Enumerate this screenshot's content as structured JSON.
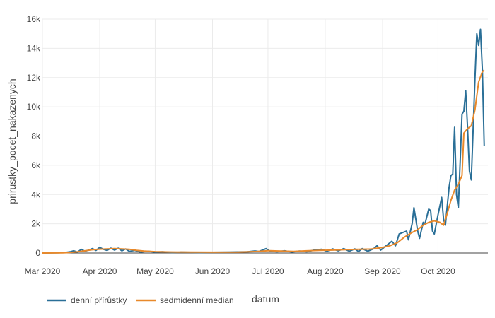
{
  "chart_data": {
    "type": "line",
    "xlabel": "datum",
    "ylabel": "prirustky_pocet_nakazenych",
    "x_range": [
      "2020-03-01",
      "2020-10-28"
    ],
    "ylim": [
      0,
      16000
    ],
    "y_ticks": [
      0,
      2000,
      4000,
      6000,
      8000,
      10000,
      12000,
      14000,
      16000
    ],
    "y_tick_labels": [
      "0",
      "2k",
      "4k",
      "6k",
      "8k",
      "10k",
      "12k",
      "14k",
      "16k"
    ],
    "x_ticks": [
      "2020-03-01",
      "2020-04-01",
      "2020-05-01",
      "2020-06-01",
      "2020-07-01",
      "2020-08-01",
      "2020-09-01",
      "2020-10-01"
    ],
    "x_tick_labels": [
      "Mar 2020",
      "Apr 2020",
      "May 2020",
      "Jun 2020",
      "Jul 2020",
      "Aug 2020",
      "Sep 2020",
      "Oct 2020"
    ],
    "grid": true,
    "legend_position": "bottom-left",
    "series": [
      {
        "name": "denní přírůstky",
        "color": "#2a6f97",
        "points": [
          [
            "2020-03-01",
            0
          ],
          [
            "2020-03-10",
            20
          ],
          [
            "2020-03-14",
            50
          ],
          [
            "2020-03-16",
            80
          ],
          [
            "2020-03-18",
            150
          ],
          [
            "2020-03-20",
            60
          ],
          [
            "2020-03-22",
            250
          ],
          [
            "2020-03-24",
            120
          ],
          [
            "2020-03-26",
            200
          ],
          [
            "2020-03-28",
            300
          ],
          [
            "2020-03-30",
            180
          ],
          [
            "2020-04-01",
            380
          ],
          [
            "2020-04-03",
            250
          ],
          [
            "2020-04-05",
            180
          ],
          [
            "2020-04-07",
            330
          ],
          [
            "2020-04-09",
            200
          ],
          [
            "2020-04-11",
            330
          ],
          [
            "2020-04-13",
            150
          ],
          [
            "2020-04-15",
            280
          ],
          [
            "2020-04-17",
            110
          ],
          [
            "2020-04-20",
            180
          ],
          [
            "2020-04-23",
            60
          ],
          [
            "2020-04-27",
            120
          ],
          [
            "2020-05-01",
            60
          ],
          [
            "2020-05-05",
            80
          ],
          [
            "2020-05-10",
            40
          ],
          [
            "2020-05-15",
            60
          ],
          [
            "2020-05-20",
            50
          ],
          [
            "2020-05-25",
            40
          ],
          [
            "2020-06-01",
            50
          ],
          [
            "2020-06-10",
            60
          ],
          [
            "2020-06-20",
            80
          ],
          [
            "2020-06-24",
            140
          ],
          [
            "2020-06-26",
            100
          ],
          [
            "2020-06-28",
            200
          ],
          [
            "2020-06-30",
            300
          ],
          [
            "2020-07-02",
            120
          ],
          [
            "2020-07-06",
            80
          ],
          [
            "2020-07-10",
            150
          ],
          [
            "2020-07-14",
            70
          ],
          [
            "2020-07-18",
            130
          ],
          [
            "2020-07-22",
            80
          ],
          [
            "2020-07-26",
            200
          ],
          [
            "2020-07-30",
            250
          ],
          [
            "2020-08-02",
            120
          ],
          [
            "2020-08-05",
            280
          ],
          [
            "2020-08-08",
            150
          ],
          [
            "2020-08-11",
            300
          ],
          [
            "2020-08-14",
            120
          ],
          [
            "2020-08-17",
            280
          ],
          [
            "2020-08-19",
            100
          ],
          [
            "2020-08-21",
            300
          ],
          [
            "2020-08-24",
            120
          ],
          [
            "2020-08-27",
            280
          ],
          [
            "2020-08-29",
            500
          ],
          [
            "2020-08-31",
            200
          ],
          [
            "2020-09-02",
            400
          ],
          [
            "2020-09-04",
            600
          ],
          [
            "2020-09-06",
            800
          ],
          [
            "2020-09-08",
            500
          ],
          [
            "2020-09-10",
            1300
          ],
          [
            "2020-09-12",
            1400
          ],
          [
            "2020-09-14",
            1500
          ],
          [
            "2020-09-15",
            900
          ],
          [
            "2020-09-17",
            2000
          ],
          [
            "2020-09-18",
            3100
          ],
          [
            "2020-09-20",
            1500
          ],
          [
            "2020-09-21",
            1000
          ],
          [
            "2020-09-23",
            2100
          ],
          [
            "2020-09-24",
            2000
          ],
          [
            "2020-09-26",
            3000
          ],
          [
            "2020-09-27",
            2900
          ],
          [
            "2020-09-28",
            1500
          ],
          [
            "2020-09-29",
            1300
          ],
          [
            "2020-10-01",
            2600
          ],
          [
            "2020-10-03",
            3800
          ],
          [
            "2020-10-04",
            2300
          ],
          [
            "2020-10-05",
            1900
          ],
          [
            "2020-10-07",
            4500
          ],
          [
            "2020-10-08",
            5300
          ],
          [
            "2020-10-09",
            5400
          ],
          [
            "2020-10-10",
            8600
          ],
          [
            "2020-10-11",
            4000
          ],
          [
            "2020-10-12",
            3100
          ],
          [
            "2020-10-14",
            9500
          ],
          [
            "2020-10-15",
            9700
          ],
          [
            "2020-10-16",
            11100
          ],
          [
            "2020-10-17",
            8600
          ],
          [
            "2020-10-18",
            5600
          ],
          [
            "2020-10-19",
            5000
          ],
          [
            "2020-10-21",
            11900
          ],
          [
            "2020-10-22",
            15000
          ],
          [
            "2020-10-23",
            14200
          ],
          [
            "2020-10-24",
            15300
          ],
          [
            "2020-10-25",
            12500
          ],
          [
            "2020-10-26",
            7300
          ]
        ]
      },
      {
        "name": "sedmidenní median",
        "color": "#e8892b",
        "points": [
          [
            "2020-03-01",
            0
          ],
          [
            "2020-03-12",
            10
          ],
          [
            "2020-03-16",
            40
          ],
          [
            "2020-03-20",
            80
          ],
          [
            "2020-03-24",
            150
          ],
          [
            "2020-03-28",
            220
          ],
          [
            "2020-04-01",
            260
          ],
          [
            "2020-04-05",
            280
          ],
          [
            "2020-04-09",
            300
          ],
          [
            "2020-04-13",
            280
          ],
          [
            "2020-04-17",
            250
          ],
          [
            "2020-04-21",
            180
          ],
          [
            "2020-04-25",
            130
          ],
          [
            "2020-05-01",
            90
          ],
          [
            "2020-05-10",
            70
          ],
          [
            "2020-05-20",
            60
          ],
          [
            "2020-06-01",
            55
          ],
          [
            "2020-06-15",
            65
          ],
          [
            "2020-06-25",
            100
          ],
          [
            "2020-07-01",
            160
          ],
          [
            "2020-07-08",
            130
          ],
          [
            "2020-07-15",
            110
          ],
          [
            "2020-07-22",
            150
          ],
          [
            "2020-07-29",
            180
          ],
          [
            "2020-08-05",
            200
          ],
          [
            "2020-08-12",
            230
          ],
          [
            "2020-08-19",
            250
          ],
          [
            "2020-08-26",
            270
          ],
          [
            "2020-09-01",
            380
          ],
          [
            "2020-09-05",
            500
          ],
          [
            "2020-09-09",
            700
          ],
          [
            "2020-09-13",
            1100
          ],
          [
            "2020-09-17",
            1400
          ],
          [
            "2020-09-20",
            1600
          ],
          [
            "2020-09-23",
            1900
          ],
          [
            "2020-09-26",
            2100
          ],
          [
            "2020-09-29",
            2200
          ],
          [
            "2020-10-02",
            2100
          ],
          [
            "2020-10-04",
            1900
          ],
          [
            "2020-10-06",
            2700
          ],
          [
            "2020-10-08",
            3600
          ],
          [
            "2020-10-10",
            4300
          ],
          [
            "2020-10-12",
            4700
          ],
          [
            "2020-10-14",
            5300
          ],
          [
            "2020-10-15",
            8200
          ],
          [
            "2020-10-17",
            8500
          ],
          [
            "2020-10-19",
            8700
          ],
          [
            "2020-10-21",
            9800
          ],
          [
            "2020-10-23",
            11700
          ],
          [
            "2020-10-25",
            12400
          ],
          [
            "2020-10-26",
            12500
          ]
        ]
      }
    ]
  }
}
